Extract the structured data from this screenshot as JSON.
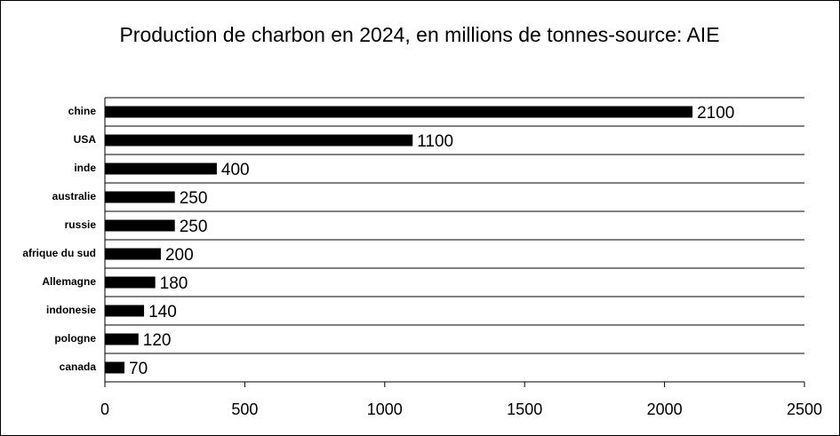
{
  "chart_data": {
    "type": "hbar",
    "title": "Production de charbon en 2024, en millions de tonnes-source: AIE",
    "categories": [
      "chine",
      "USA",
      "inde",
      "australie",
      "russie",
      "afrique du sud",
      "Allemagne",
      "indonesie",
      "pologne",
      "canada"
    ],
    "values": [
      2100,
      1100,
      400,
      250,
      250,
      200,
      180,
      140,
      120,
      70
    ],
    "color": "#000000",
    "xlim": [
      0,
      2500
    ],
    "xticks": [
      0,
      500,
      1000,
      1500,
      2000,
      2500
    ],
    "grid": true
  }
}
